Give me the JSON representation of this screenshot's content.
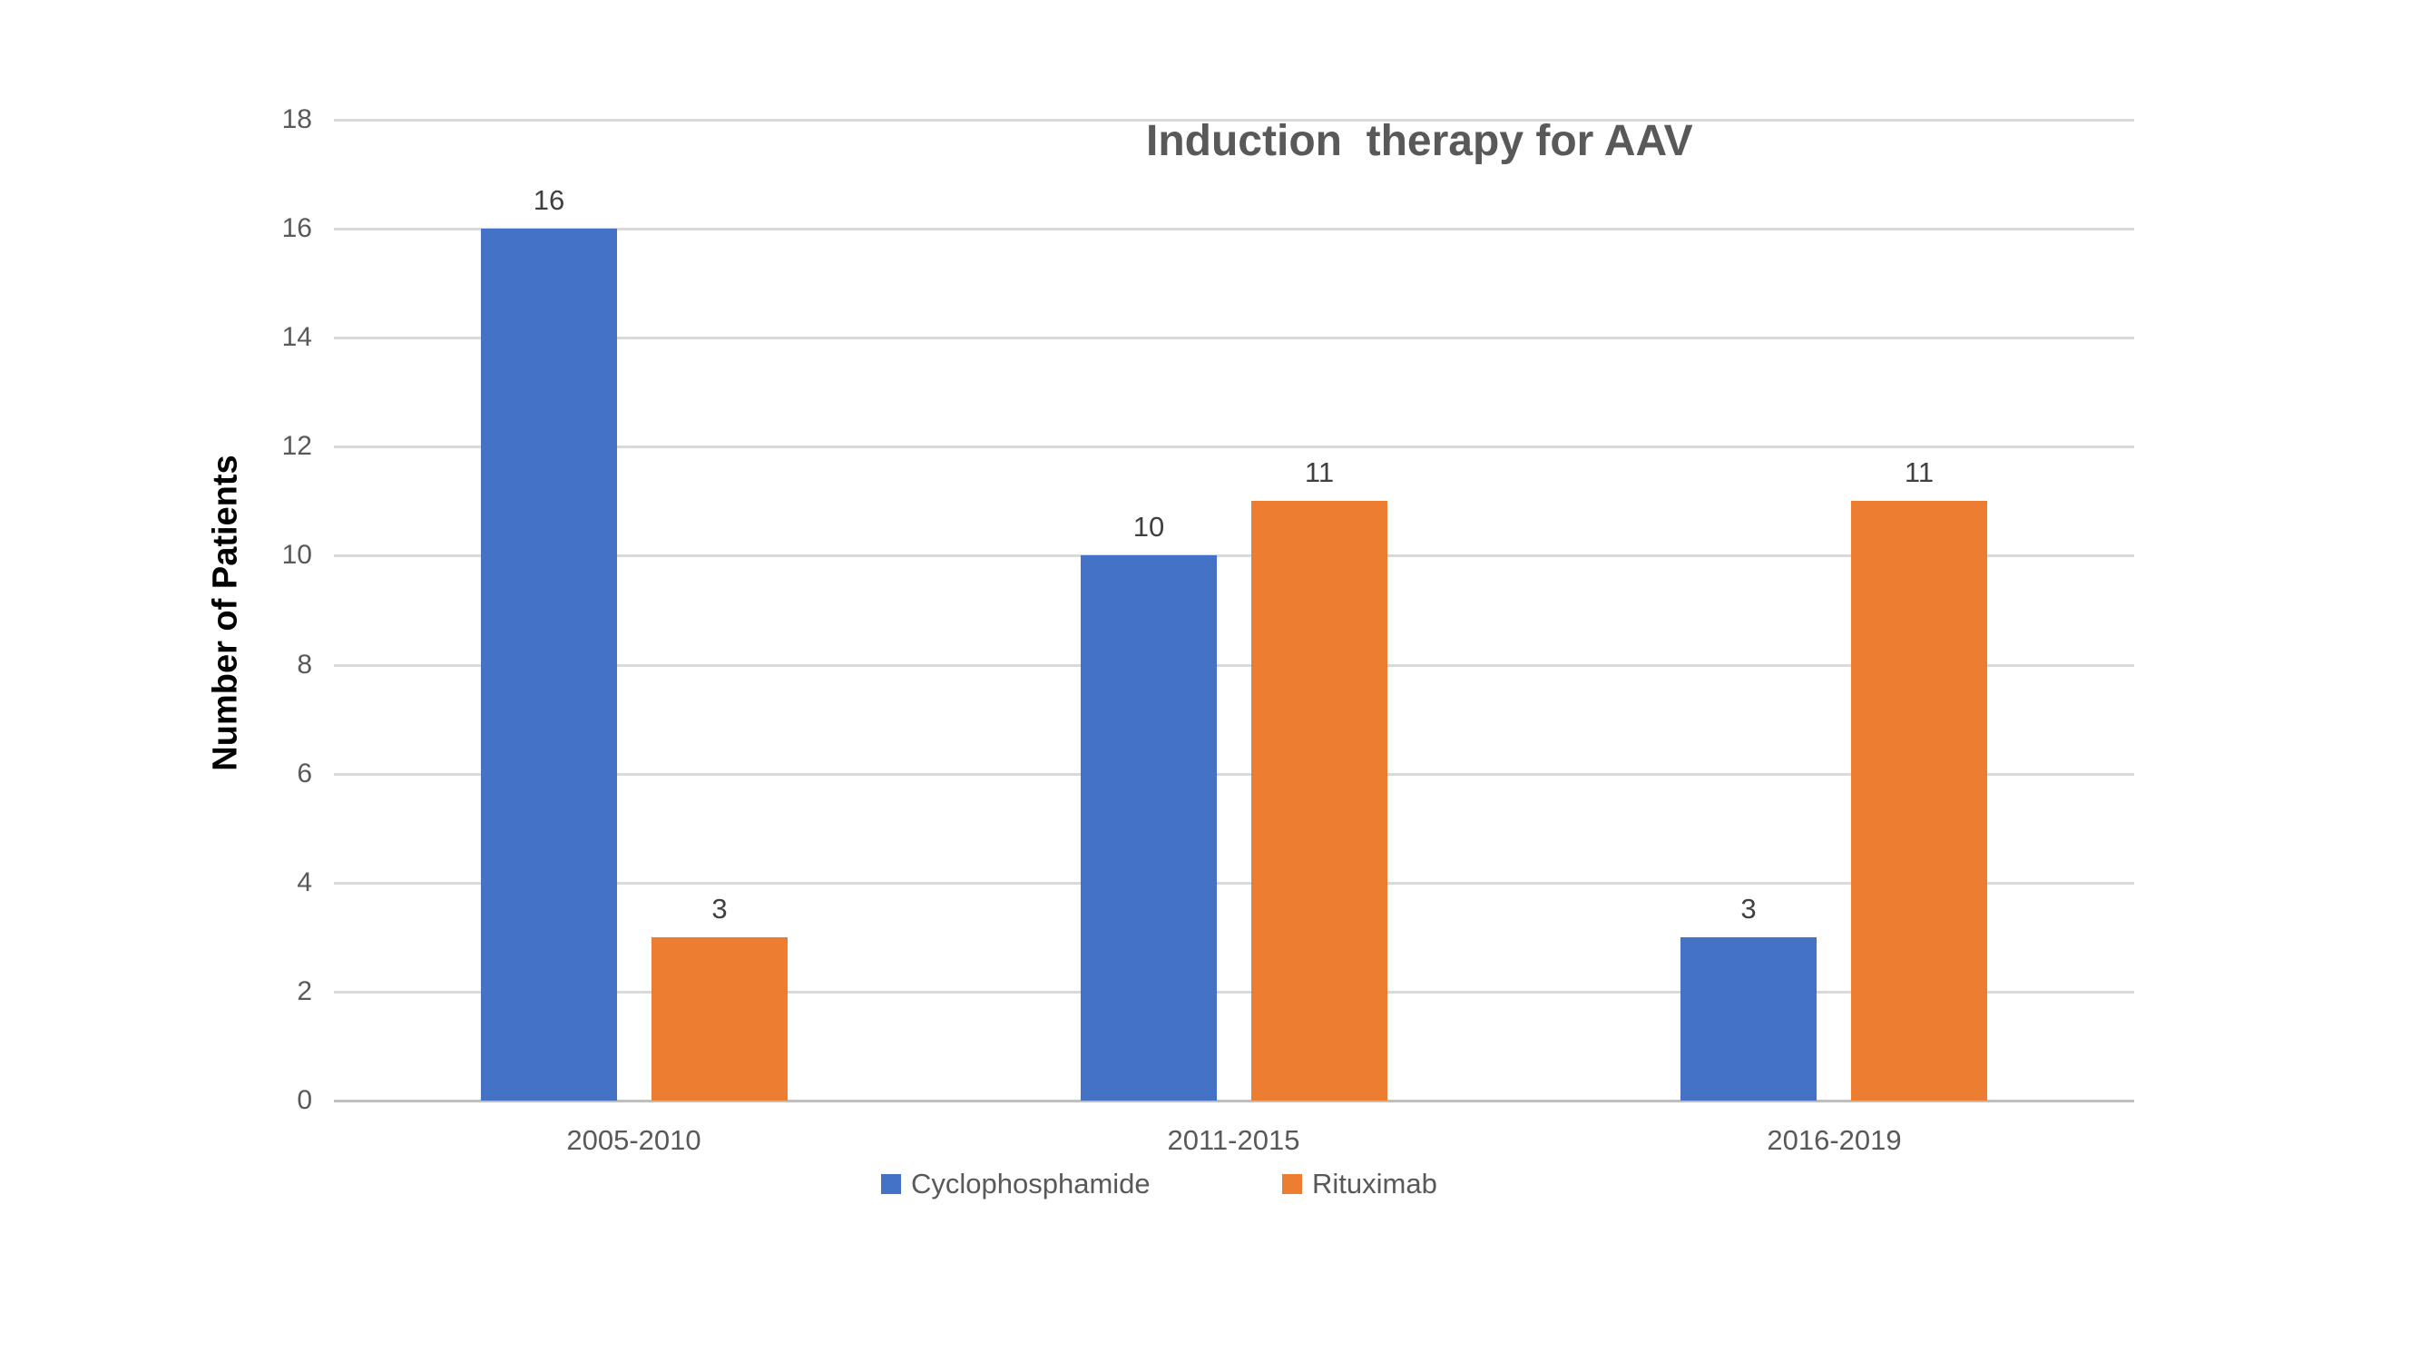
{
  "chart_data": {
    "type": "bar",
    "title": "Induction  therapy for AAV",
    "ylabel": "Number of Patients",
    "xlabel": "",
    "categories": [
      "2005-2010",
      "2011-2015",
      "2016-2019"
    ],
    "series": [
      {
        "name": "Cyclophosphamide",
        "color": "#4472C4",
        "values": [
          16,
          10,
          3
        ]
      },
      {
        "name": "Rituximab",
        "color": "#ED7D31",
        "values": [
          3,
          11,
          11
        ]
      }
    ],
    "ylim": [
      0,
      18
    ],
    "ytick_step": 2,
    "ytick_labels": [
      "0",
      "2",
      "4",
      "6",
      "8",
      "10",
      "12",
      "14",
      "16",
      "18"
    ],
    "grid": "horizontal",
    "legend_position": "bottom",
    "data_labels": true
  },
  "colors": {
    "background": "#FFFFFF",
    "gridline": "#D9D9D9",
    "axis_line": "#BFBFBF",
    "title_text": "#595959",
    "tick_label_text": "#595959",
    "category_label_text": "#595959",
    "data_label_text": "#404040",
    "legend_label_text": "#595959",
    "y_title_text": "#000000"
  }
}
